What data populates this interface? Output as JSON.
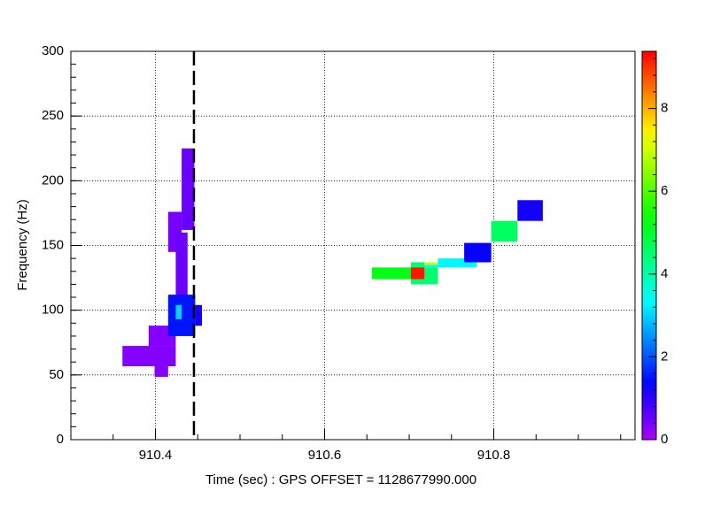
{
  "chart_data": {
    "type": "heatmap",
    "xlabel": "Time (sec) : GPS OFFSET = 1128677990.000",
    "ylabel": "Frequency (Hz)",
    "xlim": [
      910.3,
      910.967
    ],
    "xticks": [
      910.4,
      910.6,
      910.8
    ],
    "ylim": [
      0,
      300
    ],
    "yticks": [
      0,
      50,
      100,
      150,
      200,
      250,
      300
    ],
    "zlim": [
      0,
      9.38
    ],
    "zticks": [
      0,
      2,
      4,
      6,
      8
    ],
    "grid": true,
    "marker_x": 910.4455,
    "tiles": [
      {
        "x": [
          910.361,
          910.424
        ],
        "y": [
          56.7,
          72.4
        ],
        "value": 0.3
      },
      {
        "x": [
          910.392,
          910.424
        ],
        "y": [
          72.4,
          88.1
        ],
        "value": 0.3
      },
      {
        "x": [
          910.399,
          910.415
        ],
        "y": [
          48.5,
          56.7
        ],
        "value": 0.3
      },
      {
        "x": [
          910.431,
          910.446
        ],
        "y": [
          162,
          225
        ],
        "value": 0.5
      },
      {
        "x": [
          910.415,
          910.431
        ],
        "y": [
          145,
          176
        ],
        "value": 0.4
      },
      {
        "x": [
          910.424,
          910.438
        ],
        "y": [
          104,
          160
        ],
        "value": 0.5
      },
      {
        "x": [
          910.415,
          910.447
        ],
        "y": [
          80,
          112
        ],
        "value": 1.5
      },
      {
        "x": [
          910.424,
          910.431
        ],
        "y": [
          93,
          104
        ],
        "value": 3.0
      },
      {
        "x": [
          910.447,
          910.455
        ],
        "y": [
          88,
          104
        ],
        "value": 1.2
      },
      {
        "x": [
          910.702,
          910.734
        ],
        "y": [
          120,
          137
        ],
        "value": 4.5
      },
      {
        "x": [
          910.656,
          910.703
        ],
        "y": [
          124,
          133
        ],
        "value": 5.2
      },
      {
        "x": [
          910.702,
          910.718
        ],
        "y": [
          124,
          133
        ],
        "value": 9.2
      },
      {
        "x": [
          910.718,
          910.734
        ],
        "y": [
          133,
          137
        ],
        "value": 7.0
      },
      {
        "x": [
          910.734,
          910.78
        ],
        "y": [
          133,
          140
        ],
        "value": 3.3
      },
      {
        "x": [
          910.718,
          910.734
        ],
        "y": [
          133,
          135
        ],
        "value": 3.3
      },
      {
        "x": [
          910.765,
          910.797
        ],
        "y": [
          137,
          152
        ],
        "value": 1.3
      },
      {
        "x": [
          910.797,
          910.828
        ],
        "y": [
          153,
          169
        ],
        "value": 4.6
      },
      {
        "x": [
          910.828,
          910.858
        ],
        "y": [
          169,
          185
        ],
        "value": 1.2
      }
    ]
  }
}
